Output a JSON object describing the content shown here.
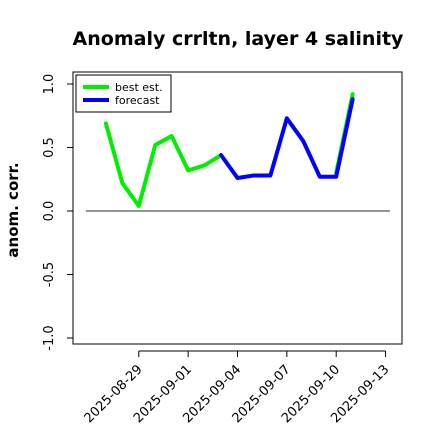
{
  "chart_data": {
    "type": "line",
    "title": "Anomaly crrltn, layer 4 salinity",
    "ylabel": "anom. corr.",
    "xlabel": "",
    "ylim": [
      -1.0,
      1.0
    ],
    "yticks": [
      -1.0,
      -0.5,
      0.0,
      0.5,
      1.0
    ],
    "ytick_labels": [
      "-1.0",
      "-0.5",
      "0.0",
      "0.5",
      "1.0"
    ],
    "x_dates": [
      "2025-08-27",
      "2025-08-28",
      "2025-08-29",
      "2025-08-30",
      "2025-08-31",
      "2025-09-01",
      "2025-09-02",
      "2025-09-03",
      "2025-09-04",
      "2025-09-05",
      "2025-09-06",
      "2025-09-07",
      "2025-09-08",
      "2025-09-09",
      "2025-09-10",
      "2025-09-11"
    ],
    "xlim": [
      "2025-08-25",
      "2025-09-14"
    ],
    "xticks": [
      "2025-08-29",
      "2025-09-01",
      "2025-09-04",
      "2025-09-07",
      "2025-09-10",
      "2025-09-13"
    ],
    "xtick_colors": [
      "#000000",
      "#000000",
      "#228B22",
      "#000000",
      "#000000",
      "#000000"
    ],
    "series": [
      {
        "name": "best est.",
        "color": "#00ee00",
        "values": [
          0.69,
          0.22,
          0.04,
          0.52,
          0.59,
          0.32,
          0.36,
          0.44,
          null,
          null,
          null,
          null,
          null,
          null,
          0.3,
          0.92
        ]
      },
      {
        "name": "forecast",
        "color": "#0000ff",
        "values": [
          null,
          null,
          null,
          null,
          null,
          null,
          null,
          0.44,
          0.26,
          0.28,
          0.28,
          0.73,
          0.55,
          0.27,
          0.27,
          0.88
        ]
      }
    ],
    "reference_line": 0.0,
    "legend_position": "top-left",
    "grid": false
  }
}
